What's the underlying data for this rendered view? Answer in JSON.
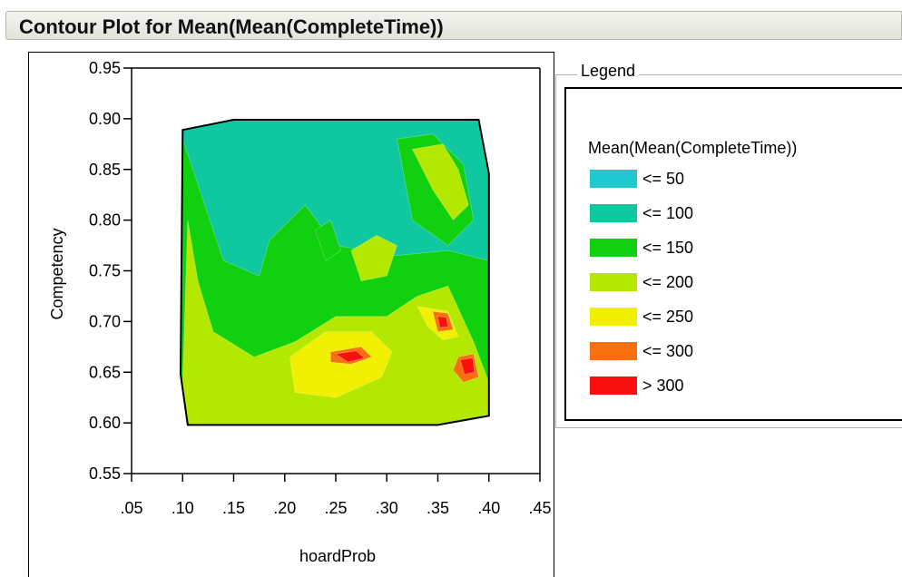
{
  "title": "Contour Plot for Mean(Mean(CompleteTime))",
  "chart_data": {
    "type": "contour",
    "xlabel": "hoardProb",
    "ylabel": "Competency",
    "xlim": [
      0.05,
      0.45
    ],
    "ylim": [
      0.55,
      0.95
    ],
    "x_ticks": [
      ".05",
      ".10",
      ".15",
      ".20",
      ".25",
      ".30",
      ".35",
      ".40",
      ".45"
    ],
    "y_ticks": [
      "0.55",
      "0.60",
      "0.65",
      "0.70",
      "0.75",
      "0.80",
      "0.85",
      "0.90",
      "0.95"
    ],
    "legend": {
      "caption": "Legend",
      "title": "Mean(Mean(CompleteTime))",
      "levels": [
        {
          "label": "<= 50",
          "color": "#20c8d0"
        },
        {
          "label": "<= 100",
          "color": "#10c8a0"
        },
        {
          "label": "<= 150",
          "color": "#10d010"
        },
        {
          "label": "<= 200",
          "color": "#b4e800"
        },
        {
          "label": "<= 250",
          "color": "#f0f000"
        },
        {
          "label": "<= 300",
          "color": "#f87010"
        },
        {
          "label": "> 300",
          "color": "#f81010"
        }
      ]
    },
    "boundary": [
      [
        0.1,
        0.889
      ],
      [
        0.15,
        0.899
      ],
      [
        0.39,
        0.899
      ],
      [
        0.4,
        0.846
      ],
      [
        0.4,
        0.607
      ],
      [
        0.35,
        0.598
      ],
      [
        0.105,
        0.598
      ],
      [
        0.098,
        0.648
      ]
    ],
    "regions": [
      {
        "level": 1,
        "polygon": [
          [
            0.1,
            0.889
          ],
          [
            0.15,
            0.899
          ],
          [
            0.39,
            0.899
          ],
          [
            0.4,
            0.846
          ],
          [
            0.4,
            0.607
          ],
          [
            0.35,
            0.598
          ],
          [
            0.105,
            0.598
          ],
          [
            0.098,
            0.648
          ]
        ]
      },
      {
        "level": 2,
        "polygon": [
          [
            0.1,
            0.88
          ],
          [
            0.14,
            0.76
          ],
          [
            0.175,
            0.745
          ],
          [
            0.185,
            0.78
          ],
          [
            0.22,
            0.815
          ],
          [
            0.25,
            0.775
          ],
          [
            0.31,
            0.765
          ],
          [
            0.36,
            0.77
          ],
          [
            0.4,
            0.76
          ],
          [
            0.4,
            0.607
          ],
          [
            0.35,
            0.598
          ],
          [
            0.105,
            0.598
          ],
          [
            0.098,
            0.648
          ]
        ]
      },
      {
        "level": 2,
        "polygon": [
          [
            0.31,
            0.88
          ],
          [
            0.345,
            0.885
          ],
          [
            0.375,
            0.855
          ],
          [
            0.385,
            0.8
          ],
          [
            0.36,
            0.775
          ],
          [
            0.325,
            0.8
          ]
        ]
      },
      {
        "level": 2,
        "polygon": [
          [
            0.23,
            0.79
          ],
          [
            0.245,
            0.8
          ],
          [
            0.255,
            0.77
          ],
          [
            0.24,
            0.76
          ]
        ]
      },
      {
        "level": 3,
        "polygon": [
          [
            0.105,
            0.8
          ],
          [
            0.115,
            0.74
          ],
          [
            0.13,
            0.69
          ],
          [
            0.17,
            0.665
          ],
          [
            0.21,
            0.68
          ],
          [
            0.25,
            0.705
          ],
          [
            0.3,
            0.705
          ],
          [
            0.33,
            0.725
          ],
          [
            0.36,
            0.735
          ],
          [
            0.385,
            0.68
          ],
          [
            0.4,
            0.64
          ],
          [
            0.4,
            0.607
          ],
          [
            0.35,
            0.598
          ],
          [
            0.105,
            0.598
          ],
          [
            0.1,
            0.64
          ]
        ]
      },
      {
        "level": 3,
        "polygon": [
          [
            0.325,
            0.87
          ],
          [
            0.355,
            0.875
          ],
          [
            0.37,
            0.85
          ],
          [
            0.38,
            0.815
          ],
          [
            0.365,
            0.8
          ],
          [
            0.345,
            0.83
          ]
        ]
      },
      {
        "level": 3,
        "polygon": [
          [
            0.265,
            0.77
          ],
          [
            0.29,
            0.785
          ],
          [
            0.31,
            0.775
          ],
          [
            0.3,
            0.745
          ],
          [
            0.275,
            0.74
          ]
        ]
      },
      {
        "level": 4,
        "polygon": [
          [
            0.24,
            0.675
          ],
          [
            0.275,
            0.682
          ],
          [
            0.29,
            0.668
          ],
          [
            0.27,
            0.655
          ],
          [
            0.25,
            0.655
          ],
          [
            0.225,
            0.662
          ]
        ]
      },
      {
        "level": 4,
        "polygon": [
          [
            0.33,
            0.715
          ],
          [
            0.36,
            0.71
          ],
          [
            0.37,
            0.685
          ],
          [
            0.355,
            0.682
          ],
          [
            0.34,
            0.695
          ]
        ]
      },
      {
        "level": 4,
        "polygon": [
          [
            0.205,
            0.665
          ],
          [
            0.24,
            0.69
          ],
          [
            0.285,
            0.69
          ],
          [
            0.305,
            0.67
          ],
          [
            0.295,
            0.645
          ],
          [
            0.25,
            0.625
          ],
          [
            0.21,
            0.63
          ]
        ]
      },
      {
        "level": 5,
        "polygon": [
          [
            0.245,
            0.67
          ],
          [
            0.275,
            0.675
          ],
          [
            0.285,
            0.665
          ],
          [
            0.265,
            0.658
          ],
          [
            0.245,
            0.66
          ]
        ]
      },
      {
        "level": 5,
        "polygon": [
          [
            0.345,
            0.71
          ],
          [
            0.36,
            0.708
          ],
          [
            0.365,
            0.692
          ],
          [
            0.35,
            0.69
          ]
        ]
      },
      {
        "level": 5,
        "polygon": [
          [
            0.37,
            0.665
          ],
          [
            0.385,
            0.668
          ],
          [
            0.39,
            0.645
          ],
          [
            0.375,
            0.64
          ],
          [
            0.365,
            0.652
          ]
        ]
      },
      {
        "level": 6,
        "polygon": [
          [
            0.25,
            0.668
          ],
          [
            0.27,
            0.671
          ],
          [
            0.278,
            0.664
          ],
          [
            0.262,
            0.66
          ]
        ]
      },
      {
        "level": 6,
        "polygon": [
          [
            0.372,
            0.662
          ],
          [
            0.384,
            0.664
          ],
          [
            0.386,
            0.65
          ],
          [
            0.376,
            0.648
          ]
        ]
      },
      {
        "level": 6,
        "polygon": [
          [
            0.35,
            0.705
          ],
          [
            0.358,
            0.704
          ],
          [
            0.36,
            0.695
          ],
          [
            0.352,
            0.694
          ]
        ]
      }
    ]
  }
}
